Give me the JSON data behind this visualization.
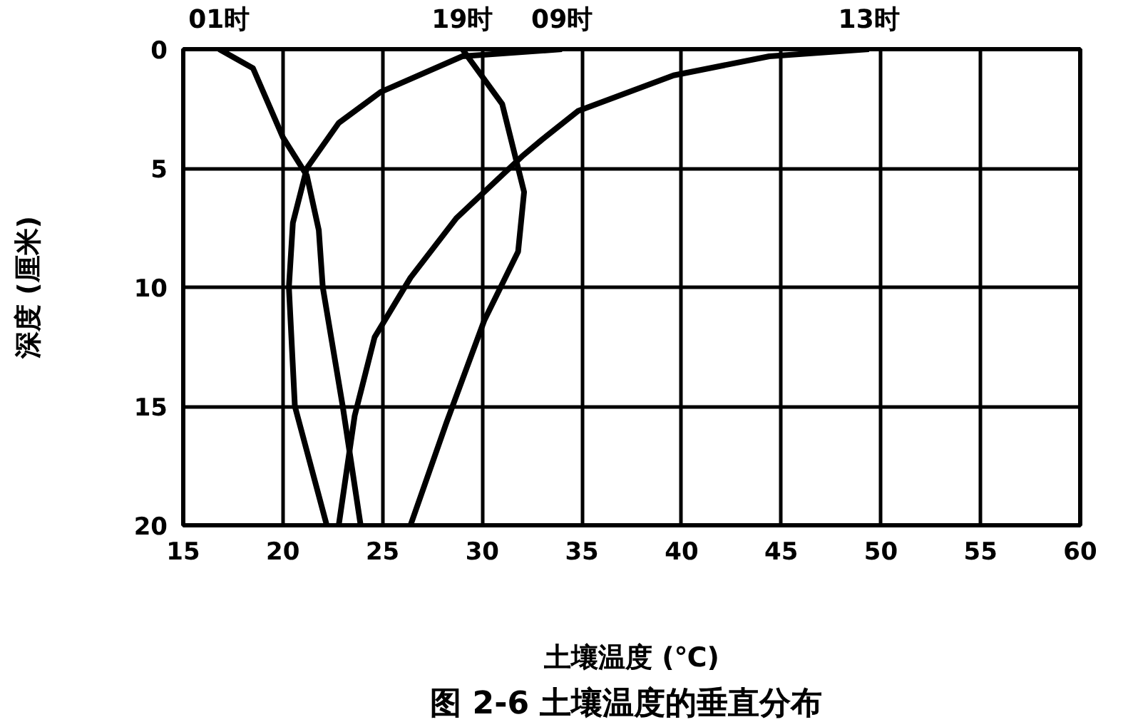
{
  "chart_data": {
    "type": "line",
    "title": "图 2-6  土壤温度的垂直分布",
    "xlabel": "土壤温度 (℃)",
    "ylabel": "深度 (厘米)",
    "xlim": [
      15,
      60
    ],
    "xticks": [
      15,
      20,
      25,
      30,
      35,
      40,
      45,
      50,
      55,
      60
    ],
    "ylim": [
      20,
      0
    ],
    "yticks": [
      0,
      5,
      10,
      15,
      20
    ],
    "grid": true,
    "line_style": "solid",
    "marker": "none",
    "series": [
      {
        "name": "01时",
        "color": "#000000",
        "x": [
          16.8,
          18.5,
          20,
          21.2,
          21.8,
          22,
          23,
          23.9
        ],
        "values": [
          0,
          0.8,
          3.7,
          5.3,
          7.6,
          10,
          15,
          20
        ]
      },
      {
        "name": "19时",
        "color": "#000000",
        "x": [
          29,
          31,
          32.1,
          31.8,
          30.1,
          28.2,
          26.4
        ],
        "values": [
          0,
          2.3,
          6,
          8.5,
          11.4,
          15.7,
          20
        ]
      },
      {
        "name": "09时",
        "color": "#000000",
        "x": [
          34,
          29,
          24.9,
          22.8,
          21.2,
          20.5,
          20.3,
          20.6,
          22.2
        ],
        "values": [
          0,
          0.3,
          1.8,
          3.1,
          5,
          7.3,
          10,
          15,
          20
        ]
      },
      {
        "name": "13时",
        "color": "#000000",
        "x": [
          49.4,
          44.4,
          39.6,
          34.8,
          33,
          32,
          28.7,
          26.4,
          24.6,
          23.6,
          22.8
        ],
        "values": [
          0,
          0.3,
          1.1,
          2.6,
          3.8,
          4.5,
          7.1,
          9.6,
          12.1,
          15.4,
          20
        ]
      }
    ]
  }
}
